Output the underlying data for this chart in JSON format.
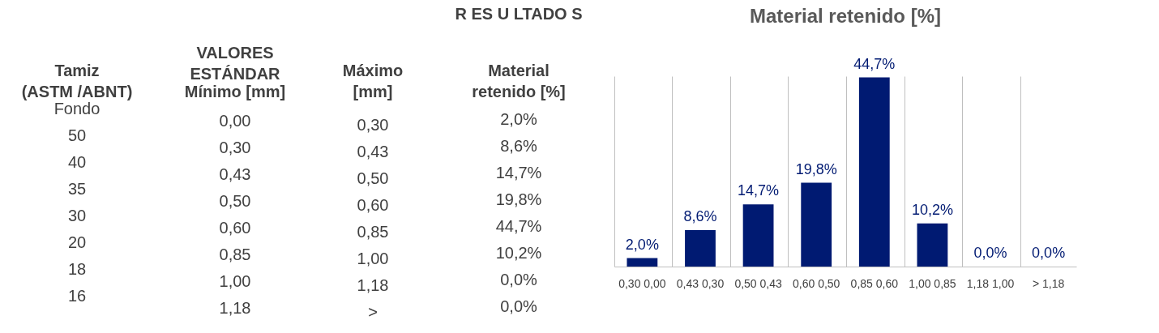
{
  "chart_data": [
    {
      "type": "other",
      "title": "R ES U LTADO S",
      "annotations": [
        "Tamiz (ASTM /ABNT)",
        "VALORES ESTÁNDAR",
        "Mínimo [mm]",
        "Máximo [mm]",
        "Material retenido [%]",
        "Fondo",
        "0,00",
        "0,30",
        "2,0%",
        "50",
        "0,30",
        "0,43",
        "8,6%",
        "40",
        "0,43",
        "0,50",
        "14,7%",
        "35",
        "0,50",
        "0,60",
        "19,8%",
        "30",
        "0,60",
        "0,85",
        "44,7%",
        "20",
        "0,85",
        "1,00",
        "10,2%",
        "18",
        "1,00",
        "1,18",
        "0,0%",
        "16",
        "1,18",
        ">",
        "0,0%"
      ]
    },
    {
      "type": "bar",
      "title": "Material retenido [%]",
      "categories": [
        "0,30 0,00",
        "0,43 0,30",
        "0,50 0,43",
        "0,60 0,50",
        "0,85 0,60",
        "1,00 0,85",
        "1,18 1,00",
        "> 1,18"
      ],
      "values": [
        2.0,
        8.6,
        14.7,
        19.8,
        44.7,
        10.2,
        0.0,
        0.0
      ],
      "value_labels": [
        "2,0%",
        "8,6%",
        "14,7%",
        "19,8%",
        "44,7%",
        "10,2%",
        "0,0%",
        "0,0%"
      ],
      "color": "#001a72"
    }
  ]
}
